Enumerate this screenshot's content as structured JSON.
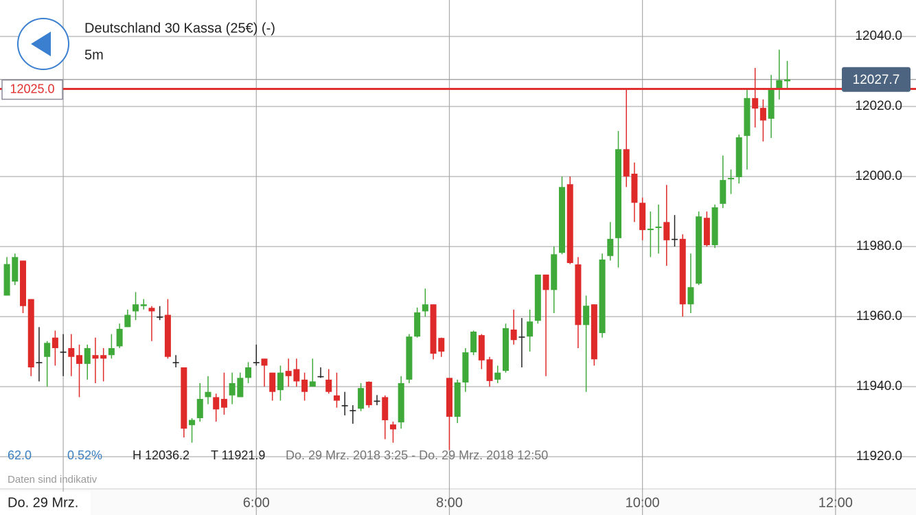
{
  "chart_data": {
    "type": "candlestick",
    "title": "Deutschland 30 Kassa (25€) (-)",
    "interval": "5m",
    "x": [
      205,
      210,
      215,
      220,
      225,
      230,
      235,
      240,
      245,
      250,
      255,
      260,
      265,
      270,
      275,
      280,
      285,
      290,
      295,
      300,
      305,
      310,
      315,
      320,
      325,
      330,
      335,
      340,
      345,
      350,
      355,
      360,
      365,
      370,
      375,
      380,
      385,
      390,
      395,
      400,
      405,
      410,
      415,
      420,
      425,
      430,
      435,
      440,
      445,
      450,
      455,
      460,
      465,
      470,
      475,
      480,
      485,
      490,
      495,
      500,
      505,
      510,
      515,
      520,
      525,
      530,
      535,
      540,
      545,
      550,
      555,
      560,
      565,
      570,
      575,
      580,
      585,
      590,
      595,
      600,
      605,
      610,
      615,
      620,
      625,
      630,
      635,
      640,
      645,
      650,
      655,
      660,
      665,
      670,
      675,
      680,
      685,
      690
    ],
    "open": [
      11966,
      11970,
      11976,
      11965,
      11947,
      11948.5,
      11954,
      11950,
      11951,
      11949,
      11946.5,
      11949,
      11949,
      11949,
      11951.5,
      11957,
      11961.5,
      11963,
      11962.5,
      11960,
      11960.5,
      11947,
      11945.5,
      11929,
      11931,
      11937,
      11937,
      11936.5,
      11937.5,
      11937,
      11942.5,
      11947,
      11948,
      11944,
      11939,
      11944.5,
      11945,
      11942,
      11940,
      11943,
      11942,
      11937.5,
      11934.7,
      11933.3,
      11933.7,
      11941.4,
      11936,
      11937,
      11929.2,
      11929.8,
      11942,
      11954.3,
      11961.5,
      11963.5,
      11953.9,
      11942.5,
      11931.4,
      11941.2,
      11949.8,
      11954.7,
      11947.8,
      11942,
      11944.5,
      11956.3,
      11954.3,
      11954.3,
      11958.8,
      11972,
      11967.6,
      11978.2,
      11997.8,
      11974.9,
      11957.6,
      11963.5,
      11955.3,
      11977.3,
      11982.4,
      12007.8,
      12000.8,
      11992.5,
      11984.7,
      11985.3,
      11987,
      11982.2,
      11982.2,
      11963.5,
      11969.4,
      11988.2,
      11980.4,
      11992.2,
      11999.2,
      11999.8,
      12011.6,
      12022.4,
      12019.6,
      12016.5,
      12025.3,
      12027.2
    ],
    "high": [
      11977,
      11978,
      11976,
      11965,
      11957,
      11953,
      11956,
      11955,
      11955,
      11952,
      11952,
      11954,
      11951,
      11955,
      11958,
      11962,
      11967,
      11965,
      11963,
      11963,
      11965,
      11949,
      11945.5,
      11931,
      11941,
      11943,
      11938,
      11944,
      11944,
      11944,
      11947,
      11952,
      11948,
      11944,
      11946,
      11948,
      11948,
      11944,
      11948,
      11945.5,
      11945,
      11944,
      11938.5,
      11934.7,
      11941,
      11941.5,
      11937.6,
      11937.5,
      11930,
      11943,
      11955,
      11962.6,
      11968,
      11963.5,
      11954,
      11942.5,
      11942,
      11951,
      11956,
      11955,
      11948.5,
      11946,
      11958,
      11962,
      11959.6,
      11962,
      11972,
      11972,
      11980,
      12000,
      12000,
      11977,
      11966,
      11963.5,
      11978,
      11987,
      12013,
      12025,
      12004,
      11994,
      11990,
      11992,
      11997.6,
      11989,
      11983.5,
      11978,
      11990,
      11990,
      11992,
      12006,
      12002,
      12012,
      12025,
      12031,
      12022,
      12029,
      12036.2,
      12033
    ],
    "low": [
      11966,
      11969,
      11961,
      11943,
      11941.5,
      11940,
      11946,
      11943,
      11943,
      11937,
      11942,
      11941,
      11941.5,
      11948,
      11951,
      11957,
      11959,
      11962,
      11953,
      11959,
      11948,
      11945.5,
      11925.5,
      11924,
      11930,
      11935,
      11930,
      11932,
      11935,
      11937,
      11941,
      11946,
      11940,
      11936,
      11936,
      11940,
      11940,
      11936,
      11940,
      11942.5,
      11938,
      11934,
      11931.8,
      11929.4,
      11933,
      11934,
      11934.7,
      11925,
      11924,
      11928,
      11941,
      11954,
      11960,
      11947.8,
      11948.5,
      11921.9,
      11929.6,
      11938.5,
      11949,
      11945,
      11940,
      11941,
      11944,
      11952,
      11945.5,
      11950,
      11958,
      11943,
      11961,
      11977.8,
      11975,
      11951,
      11938.5,
      11946,
      11954,
      11976,
      11974,
      11997,
      11987,
      11981.8,
      11977,
      11978,
      11974.5,
      11980,
      11960,
      11961,
      11969,
      11980,
      11979.6,
      11991,
      11995,
      11998,
      12002,
      12014,
      12010,
      12011,
      12022,
      12025
    ],
    "close": [
      11975,
      11977,
      11963,
      11945.5,
      11947,
      11952.5,
      11951,
      11950,
      11948.5,
      11946.5,
      11951,
      11948,
      11948,
      11951,
      11956.5,
      11960.5,
      11963.5,
      11963.5,
      11961.5,
      11960,
      11948.5,
      11947,
      11928,
      11930.5,
      11936.5,
      11938.5,
      11933.5,
      11934,
      11941,
      11942.5,
      11945.5,
      11947,
      11946,
      11938.5,
      11944,
      11943,
      11941.5,
      11938.5,
      11941.5,
      11943,
      11938.5,
      11936,
      11934.7,
      11933.3,
      11939.6,
      11934.7,
      11936,
      11930.4,
      11927.8,
      11941,
      11954.3,
      11961.2,
      11963.5,
      11949.4,
      11950,
      11931.4,
      11941.2,
      11949.8,
      11955.7,
      11947.5,
      11941.6,
      11944,
      11956.7,
      11953.3,
      11954.3,
      11958.6,
      11972,
      11967.6,
      11977.8,
      11997,
      11975.3,
      11957.6,
      11963.1,
      11947.8,
      11976.3,
      11982.2,
      12007.8,
      12000,
      11992.5,
      11984.7,
      11985.1,
      11985.7,
      11981.8,
      11982.2,
      11963.5,
      11968.4,
      11988.6,
      11980.4,
      11991.2,
      11999,
      11999.6,
      12011.2,
      12022.4,
      12019.4,
      12016,
      12025.3,
      12027.5,
      12027.7
    ],
    "up_color": "#3fa93a",
    "down_color": "#df2a2a",
    "flat_color": "#222222",
    "xlim": [
      200.7,
      770
    ],
    "xticks": [
      {
        "value": 240,
        "label": "Do. 29 Mrz."
      },
      {
        "value": 360,
        "label": "6:00"
      },
      {
        "value": 480,
        "label": "8:00"
      },
      {
        "value": 600,
        "label": "10:00"
      },
      {
        "value": 720,
        "label": "12:00"
      }
    ],
    "ylim": [
      11910.8,
      12050.4
    ],
    "yticks": [
      {
        "value": 11920,
        "label": "11920.0"
      },
      {
        "value": 11940,
        "label": "11940.0"
      },
      {
        "value": 11960,
        "label": "11960.0"
      },
      {
        "value": 11980,
        "label": "11980.0"
      },
      {
        "value": 12000,
        "label": "12000.0"
      },
      {
        "value": 12020,
        "label": "12020.0"
      },
      {
        "value": 12040,
        "label": "12040.0"
      }
    ],
    "grid": true,
    "horizontal_line": {
      "value": 12025,
      "label": "12025.0",
      "color": "#e03030"
    },
    "last_price": 12027.7,
    "stats": {
      "change": "62.0",
      "change_percent": "0.52%",
      "high": "H 12036.2",
      "low": "T 11921.9",
      "range": "Do. 29 Mrz. 2018 3:25 - Do. 29 Mrz. 2018 12:50"
    },
    "note": "Daten sind indikativ"
  }
}
